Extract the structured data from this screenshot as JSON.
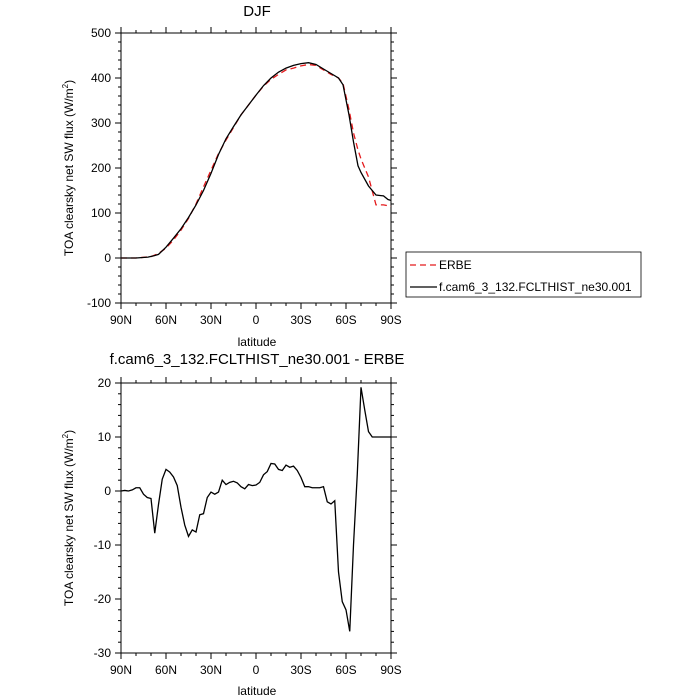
{
  "chart_data": [
    {
      "type": "line",
      "title": "DJF",
      "xlabel": "latitude",
      "ylabel": "TOA clearsky net SW flux (W/m²)",
      "ylabel_base": "TOA clearsky net SW flux (W/m",
      "ylabel_sup": "2",
      "ylabel_close": ")",
      "xlim": [
        -90,
        90
      ],
      "ylim": [
        -100,
        500
      ],
      "x_ticks": [
        -90,
        -60,
        -30,
        0,
        30,
        60,
        90
      ],
      "x_tick_labels": [
        "90N",
        "60N",
        "30N",
        "0",
        "30S",
        "60S",
        "90S"
      ],
      "y_ticks": [
        -100,
        0,
        100,
        200,
        300,
        400,
        500
      ],
      "y_tick_labels": [
        "-100",
        "0",
        "100",
        "200",
        "300",
        "400",
        "500"
      ],
      "legend_position": "right",
      "series": [
        {
          "name": "ERBE",
          "color": "#e41a1c",
          "dash": "dashed",
          "x": [
            -90,
            -80,
            -70,
            -65,
            -60,
            -55,
            -50,
            -45,
            -40,
            -35,
            -30,
            -25,
            -20,
            -15,
            -10,
            -5,
            0,
            5,
            10,
            15,
            20,
            25,
            30,
            35,
            40,
            45,
            50,
            55,
            58,
            62,
            65,
            68,
            70,
            75,
            80,
            85,
            90
          ],
          "y": [
            0,
            0,
            3,
            10,
            22,
            40,
            62,
            88,
            120,
            158,
            195,
            232,
            262,
            290,
            318,
            340,
            362,
            382,
            397,
            408,
            418,
            422,
            427,
            430,
            428,
            418,
            408,
            400,
            388,
            330,
            278,
            240,
            220,
            180,
            118,
            118,
            115
          ]
        },
        {
          "name": "f.cam6_3_132.FCLTHIST_ne30.001",
          "color": "#000000",
          "dash": "solid",
          "x": [
            -90,
            -80,
            -72,
            -68,
            -65,
            -60,
            -55,
            -50,
            -45,
            -40,
            -35,
            -30,
            -25,
            -20,
            -15,
            -10,
            -5,
            0,
            5,
            10,
            15,
            20,
            25,
            30,
            35,
            40,
            45,
            50,
            55,
            58,
            62,
            65,
            68,
            70,
            75,
            80,
            85,
            88,
            90
          ],
          "y": [
            0,
            0,
            2,
            5,
            8,
            24,
            44,
            65,
            90,
            118,
            150,
            188,
            230,
            265,
            292,
            318,
            340,
            362,
            383,
            400,
            413,
            422,
            428,
            432,
            434,
            430,
            420,
            410,
            400,
            385,
            318,
            258,
            205,
            190,
            160,
            140,
            138,
            130,
            128
          ]
        }
      ]
    },
    {
      "type": "line",
      "title": "f.cam6_3_132.FCLTHIST_ne30.001 - ERBE",
      "xlabel": "latitude",
      "ylabel": "TOA clearsky net SW flux (W/m²)",
      "ylabel_base": "TOA clearsky net SW flux (W/m",
      "ylabel_sup": "2",
      "ylabel_close": ")",
      "xlim": [
        -90,
        90
      ],
      "ylim": [
        -30,
        20
      ],
      "x_ticks": [
        -90,
        -60,
        -30,
        0,
        30,
        60,
        90
      ],
      "x_tick_labels": [
        "90N",
        "60N",
        "30N",
        "0",
        "30S",
        "60S",
        "90S"
      ],
      "y_ticks": [
        -30,
        -20,
        -10,
        0,
        10,
        20
      ],
      "y_tick_labels": [
        "-30",
        "-20",
        "-10",
        "0",
        "10",
        "20"
      ],
      "series": [
        {
          "color": "#000000",
          "dash": "solid",
          "x": [
            -90,
            -87.5,
            -85,
            -82.5,
            -80,
            -77.5,
            -75,
            -72.5,
            -70,
            -67.5,
            -65,
            -62.5,
            -60,
            -57.5,
            -55,
            -52.5,
            -50,
            -47.5,
            -45,
            -42.5,
            -40,
            -37.5,
            -35,
            -32.5,
            -30,
            -27.5,
            -25,
            -22.5,
            -20,
            -17.5,
            -15,
            -12.5,
            -10,
            -7.5,
            -5,
            -2.5,
            0,
            2.5,
            5,
            7.5,
            10,
            12.5,
            15,
            17.5,
            20,
            22.5,
            25,
            27.5,
            30,
            32.5,
            35,
            37.5,
            40,
            42.5,
            45,
            47.5,
            50,
            52.5,
            55,
            57.5,
            60,
            62.5,
            65,
            67.5,
            70,
            72.5,
            75,
            77.5,
            80,
            82.5,
            85,
            87.5,
            90
          ],
          "y": [
            0,
            0.1,
            0,
            0.2,
            0.6,
            0.6,
            -0.6,
            -1.2,
            -1.4,
            -7.8,
            -2.5,
            2.2,
            4.0,
            3.5,
            2.6,
            1.0,
            -3.0,
            -6.3,
            -8.4,
            -7.2,
            -7.6,
            -4.4,
            -4.2,
            -1.2,
            -0.2,
            -0.6,
            -0.2,
            2.0,
            1.2,
            1.6,
            1.8,
            1.5,
            0.8,
            0.4,
            1.2,
            1.0,
            1.1,
            1.6,
            3.0,
            3.6,
            5.1,
            5.0,
            4.0,
            3.8,
            4.8,
            4.4,
            4.6,
            3.8,
            2.5,
            0.8,
            0.8,
            0.6,
            0.6,
            0.6,
            0.8,
            -2.0,
            -2.4,
            -1.8,
            -15.0,
            -20.5,
            -22.0,
            -26.0,
            -10.0,
            3.0,
            19.2,
            15.0,
            11.0,
            10.0,
            10.0,
            10.0,
            10.0,
            10.0,
            10.0
          ]
        }
      ]
    }
  ]
}
